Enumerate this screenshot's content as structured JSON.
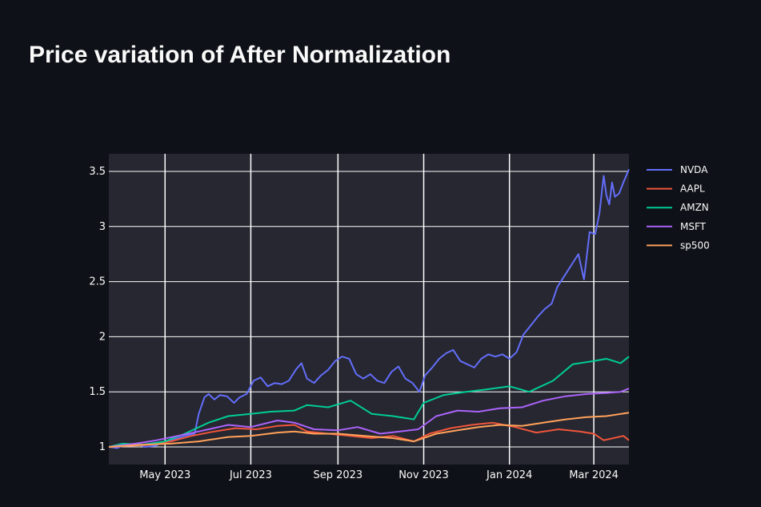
{
  "title": "Price variation of After Normalization",
  "chart_data": {
    "type": "line",
    "xlabel": "",
    "ylabel": "",
    "xlim": [
      "2023-03-22",
      "2024-03-26"
    ],
    "ylim": [
      0.84,
      3.66
    ],
    "x_ticks": [
      {
        "date": "2023-05-01",
        "label": "May 2023"
      },
      {
        "date": "2023-07-01",
        "label": "Jul 2023"
      },
      {
        "date": "2023-09-01",
        "label": "Sep 2023"
      },
      {
        "date": "2023-11-01",
        "label": "Nov 2023"
      },
      {
        "date": "2024-01-01",
        "label": "Jan 2024"
      },
      {
        "date": "2024-03-01",
        "label": "Mar 2024"
      }
    ],
    "y_ticks": [
      {
        "value": 1,
        "label": "1"
      },
      {
        "value": 1.5,
        "label": "1.5"
      },
      {
        "value": 2,
        "label": "2"
      },
      {
        "value": 2.5,
        "label": "2.5"
      },
      {
        "value": 3,
        "label": "3"
      },
      {
        "value": 3.5,
        "label": "3.5"
      }
    ],
    "grid": true,
    "legend": "right",
    "series": [
      {
        "name": "NVDA",
        "color": "#636efa",
        "points": [
          [
            "2023-03-22",
            1.0
          ],
          [
            "2023-03-28",
            0.99
          ],
          [
            "2023-04-03",
            1.02
          ],
          [
            "2023-04-10",
            1.03
          ],
          [
            "2023-04-17",
            1.0
          ],
          [
            "2023-04-24",
            1.01
          ],
          [
            "2023-05-01",
            1.05
          ],
          [
            "2023-05-08",
            1.07
          ],
          [
            "2023-05-15",
            1.1
          ],
          [
            "2023-05-22",
            1.12
          ],
          [
            "2023-05-25",
            1.3
          ],
          [
            "2023-05-29",
            1.45
          ],
          [
            "2023-06-01",
            1.48
          ],
          [
            "2023-06-05",
            1.43
          ],
          [
            "2023-06-09",
            1.47
          ],
          [
            "2023-06-14",
            1.46
          ],
          [
            "2023-06-19",
            1.4
          ],
          [
            "2023-06-23",
            1.45
          ],
          [
            "2023-06-28",
            1.48
          ],
          [
            "2023-07-03",
            1.6
          ],
          [
            "2023-07-08",
            1.63
          ],
          [
            "2023-07-13",
            1.55
          ],
          [
            "2023-07-18",
            1.58
          ],
          [
            "2023-07-23",
            1.57
          ],
          [
            "2023-07-28",
            1.6
          ],
          [
            "2023-08-02",
            1.7
          ],
          [
            "2023-08-06",
            1.76
          ],
          [
            "2023-08-10",
            1.62
          ],
          [
            "2023-08-15",
            1.58
          ],
          [
            "2023-08-20",
            1.65
          ],
          [
            "2023-08-25",
            1.7
          ],
          [
            "2023-08-30",
            1.78
          ],
          [
            "2023-09-04",
            1.82
          ],
          [
            "2023-09-09",
            1.8
          ],
          [
            "2023-09-14",
            1.66
          ],
          [
            "2023-09-19",
            1.62
          ],
          [
            "2023-09-24",
            1.66
          ],
          [
            "2023-09-29",
            1.6
          ],
          [
            "2023-10-04",
            1.58
          ],
          [
            "2023-10-09",
            1.68
          ],
          [
            "2023-10-14",
            1.73
          ],
          [
            "2023-10-19",
            1.62
          ],
          [
            "2023-10-24",
            1.58
          ],
          [
            "2023-10-29",
            1.5
          ],
          [
            "2023-11-02",
            1.65
          ],
          [
            "2023-11-07",
            1.72
          ],
          [
            "2023-11-12",
            1.8
          ],
          [
            "2023-11-17",
            1.85
          ],
          [
            "2023-11-22",
            1.88
          ],
          [
            "2023-11-27",
            1.78
          ],
          [
            "2023-12-02",
            1.75
          ],
          [
            "2023-12-07",
            1.72
          ],
          [
            "2023-12-12",
            1.8
          ],
          [
            "2023-12-17",
            1.84
          ],
          [
            "2023-12-22",
            1.82
          ],
          [
            "2023-12-27",
            1.84
          ],
          [
            "2024-01-01",
            1.8
          ],
          [
            "2024-01-06",
            1.86
          ],
          [
            "2024-01-11",
            2.02
          ],
          [
            "2024-01-16",
            2.1
          ],
          [
            "2024-01-21",
            2.18
          ],
          [
            "2024-01-26",
            2.25
          ],
          [
            "2024-01-31",
            2.3
          ],
          [
            "2024-02-04",
            2.45
          ],
          [
            "2024-02-09",
            2.55
          ],
          [
            "2024-02-14",
            2.65
          ],
          [
            "2024-02-19",
            2.75
          ],
          [
            "2024-02-23",
            2.52
          ],
          [
            "2024-02-27",
            2.95
          ],
          [
            "2024-03-02",
            2.93
          ],
          [
            "2024-03-05",
            3.12
          ],
          [
            "2024-03-08",
            3.46
          ],
          [
            "2024-03-10",
            3.28
          ],
          [
            "2024-03-12",
            3.2
          ],
          [
            "2024-03-14",
            3.4
          ],
          [
            "2024-03-16",
            3.27
          ],
          [
            "2024-03-19",
            3.3
          ],
          [
            "2024-03-22",
            3.4
          ],
          [
            "2024-03-26",
            3.52
          ]
        ]
      },
      {
        "name": "AAPL",
        "color": "#ef553b",
        "points": [
          [
            "2023-03-22",
            1.0
          ],
          [
            "2023-04-05",
            1.01
          ],
          [
            "2023-04-20",
            1.02
          ],
          [
            "2023-05-05",
            1.05
          ],
          [
            "2023-05-20",
            1.1
          ],
          [
            "2023-06-05",
            1.14
          ],
          [
            "2023-06-20",
            1.17
          ],
          [
            "2023-07-05",
            1.16
          ],
          [
            "2023-07-20",
            1.19
          ],
          [
            "2023-08-01",
            1.2
          ],
          [
            "2023-08-10",
            1.14
          ],
          [
            "2023-08-25",
            1.12
          ],
          [
            "2023-09-10",
            1.1
          ],
          [
            "2023-09-25",
            1.08
          ],
          [
            "2023-10-10",
            1.1
          ],
          [
            "2023-10-25",
            1.05
          ],
          [
            "2023-11-05",
            1.12
          ],
          [
            "2023-11-20",
            1.17
          ],
          [
            "2023-12-05",
            1.2
          ],
          [
            "2023-12-20",
            1.22
          ],
          [
            "2024-01-05",
            1.18
          ],
          [
            "2024-01-20",
            1.13
          ],
          [
            "2024-02-05",
            1.16
          ],
          [
            "2024-02-20",
            1.14
          ],
          [
            "2024-03-01",
            1.12
          ],
          [
            "2024-03-08",
            1.06
          ],
          [
            "2024-03-15",
            1.08
          ],
          [
            "2024-03-22",
            1.1
          ],
          [
            "2024-03-26",
            1.06
          ]
        ]
      },
      {
        "name": "AMZN",
        "color": "#00cc96",
        "points": [
          [
            "2023-03-22",
            1.0
          ],
          [
            "2023-04-01",
            1.03
          ],
          [
            "2023-04-15",
            1.02
          ],
          [
            "2023-05-01",
            1.05
          ],
          [
            "2023-05-15",
            1.12
          ],
          [
            "2023-06-01",
            1.22
          ],
          [
            "2023-06-15",
            1.28
          ],
          [
            "2023-07-01",
            1.3
          ],
          [
            "2023-07-15",
            1.32
          ],
          [
            "2023-08-01",
            1.33
          ],
          [
            "2023-08-10",
            1.38
          ],
          [
            "2023-08-25",
            1.36
          ],
          [
            "2023-09-10",
            1.42
          ],
          [
            "2023-09-25",
            1.3
          ],
          [
            "2023-10-10",
            1.28
          ],
          [
            "2023-10-25",
            1.25
          ],
          [
            "2023-11-01",
            1.4
          ],
          [
            "2023-11-15",
            1.47
          ],
          [
            "2023-12-01",
            1.5
          ],
          [
            "2023-12-15",
            1.52
          ],
          [
            "2024-01-01",
            1.55
          ],
          [
            "2024-01-15",
            1.5
          ],
          [
            "2024-02-01",
            1.6
          ],
          [
            "2024-02-15",
            1.75
          ],
          [
            "2024-03-01",
            1.78
          ],
          [
            "2024-03-10",
            1.8
          ],
          [
            "2024-03-20",
            1.76
          ],
          [
            "2024-03-26",
            1.82
          ]
        ]
      },
      {
        "name": "MSFT",
        "color": "#ab63fa",
        "points": [
          [
            "2023-03-22",
            1.0
          ],
          [
            "2023-04-10",
            1.03
          ],
          [
            "2023-04-25",
            1.06
          ],
          [
            "2023-05-10",
            1.1
          ],
          [
            "2023-06-01",
            1.16
          ],
          [
            "2023-06-15",
            1.2
          ],
          [
            "2023-07-01",
            1.18
          ],
          [
            "2023-07-20",
            1.24
          ],
          [
            "2023-08-01",
            1.22
          ],
          [
            "2023-08-15",
            1.16
          ],
          [
            "2023-09-01",
            1.15
          ],
          [
            "2023-09-15",
            1.18
          ],
          [
            "2023-10-01",
            1.12
          ],
          [
            "2023-10-15",
            1.14
          ],
          [
            "2023-10-28",
            1.16
          ],
          [
            "2023-11-10",
            1.28
          ],
          [
            "2023-11-25",
            1.33
          ],
          [
            "2023-12-10",
            1.32
          ],
          [
            "2023-12-25",
            1.35
          ],
          [
            "2024-01-10",
            1.36
          ],
          [
            "2024-01-25",
            1.42
          ],
          [
            "2024-02-10",
            1.46
          ],
          [
            "2024-02-25",
            1.48
          ],
          [
            "2024-03-10",
            1.49
          ],
          [
            "2024-03-20",
            1.5
          ],
          [
            "2024-03-26",
            1.53
          ]
        ]
      },
      {
        "name": "sp500",
        "color": "#ffa15a",
        "points": [
          [
            "2023-03-22",
            1.0
          ],
          [
            "2023-04-15",
            1.02
          ],
          [
            "2023-05-05",
            1.03
          ],
          [
            "2023-05-25",
            1.05
          ],
          [
            "2023-06-15",
            1.09
          ],
          [
            "2023-07-01",
            1.1
          ],
          [
            "2023-07-20",
            1.13
          ],
          [
            "2023-08-01",
            1.14
          ],
          [
            "2023-08-15",
            1.12
          ],
          [
            "2023-09-01",
            1.12
          ],
          [
            "2023-09-20",
            1.1
          ],
          [
            "2023-10-10",
            1.08
          ],
          [
            "2023-10-25",
            1.05
          ],
          [
            "2023-11-10",
            1.12
          ],
          [
            "2023-11-25",
            1.15
          ],
          [
            "2023-12-10",
            1.18
          ],
          [
            "2023-12-25",
            1.2
          ],
          [
            "2024-01-10",
            1.19
          ],
          [
            "2024-01-25",
            1.22
          ],
          [
            "2024-02-10",
            1.25
          ],
          [
            "2024-02-25",
            1.27
          ],
          [
            "2024-03-10",
            1.28
          ],
          [
            "2024-03-26",
            1.31
          ]
        ]
      }
    ]
  }
}
